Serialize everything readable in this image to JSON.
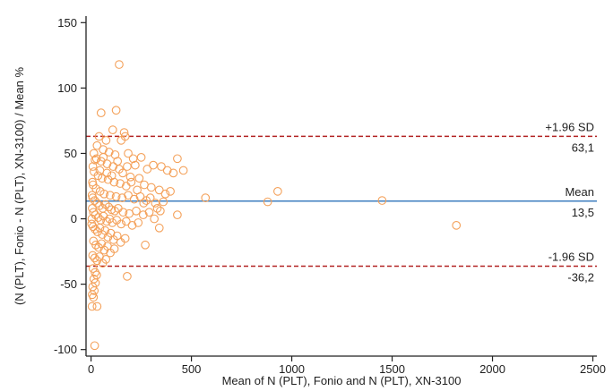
{
  "chart_data": {
    "type": "scatter",
    "xlabel": "Mean of N (PLT), Fonio and N (PLT), XN-3100",
    "ylabel": "(N (PLT), Fonio - N (PLT), XN-3100) / Mean %",
    "xlim": [
      -25,
      2520
    ],
    "ylim": [
      -105,
      155
    ],
    "x_ticks": [
      0,
      500,
      1000,
      1500,
      2000,
      2500
    ],
    "y_ticks": [
      150,
      100,
      50,
      0,
      -50,
      -100
    ],
    "reference_lines": [
      {
        "key": "upper",
        "label": "+1.96 SD",
        "value_label": "63,1",
        "value": 63.1,
        "style": "dashed",
        "color": "#b22222"
      },
      {
        "key": "mean",
        "label": "Mean",
        "value_label": "13,5",
        "value": 13.5,
        "style": "solid",
        "color": "#3f7fbf"
      },
      {
        "key": "lower",
        "label": "-1.96 SD",
        "value_label": "-36,2",
        "value": -36.2,
        "style": "dashed",
        "color": "#b22222"
      }
    ],
    "marker_color": "#f4a15a",
    "axis_color": "#222222",
    "points": [
      [
        140,
        118
      ],
      [
        125,
        83
      ],
      [
        50,
        81
      ],
      [
        108,
        68
      ],
      [
        165,
        66
      ],
      [
        40,
        63
      ],
      [
        75,
        60
      ],
      [
        150,
        60
      ],
      [
        170,
        63
      ],
      [
        30,
        56
      ],
      [
        60,
        53
      ],
      [
        90,
        51
      ],
      [
        120,
        49
      ],
      [
        185,
        50
      ],
      [
        210,
        46
      ],
      [
        250,
        47
      ],
      [
        20,
        45
      ],
      [
        50,
        44
      ],
      [
        80,
        42
      ],
      [
        110,
        40
      ],
      [
        140,
        38
      ],
      [
        180,
        40
      ],
      [
        220,
        41
      ],
      [
        280,
        38
      ],
      [
        310,
        41
      ],
      [
        350,
        40
      ],
      [
        380,
        37
      ],
      [
        410,
        35
      ],
      [
        460,
        37
      ],
      [
        430,
        46
      ],
      [
        15,
        36
      ],
      [
        35,
        33
      ],
      [
        55,
        31
      ],
      [
        85,
        30
      ],
      [
        115,
        28
      ],
      [
        145,
        27
      ],
      [
        175,
        25
      ],
      [
        200,
        28
      ],
      [
        240,
        31
      ],
      [
        265,
        26
      ],
      [
        300,
        24
      ],
      [
        340,
        22
      ],
      [
        370,
        19
      ],
      [
        395,
        21
      ],
      [
        10,
        26
      ],
      [
        25,
        23
      ],
      [
        45,
        21
      ],
      [
        65,
        19
      ],
      [
        95,
        18
      ],
      [
        125,
        17
      ],
      [
        155,
        16
      ],
      [
        185,
        18
      ],
      [
        215,
        15
      ],
      [
        245,
        17
      ],
      [
        275,
        14
      ],
      [
        320,
        12
      ],
      [
        360,
        13
      ],
      [
        8,
        16
      ],
      [
        18,
        14
      ],
      [
        30,
        12
      ],
      [
        42,
        10
      ],
      [
        58,
        8
      ],
      [
        72,
        11
      ],
      [
        88,
        9
      ],
      [
        102,
        7
      ],
      [
        118,
        6
      ],
      [
        135,
        8
      ],
      [
        160,
        5
      ],
      [
        190,
        4
      ],
      [
        225,
        6
      ],
      [
        260,
        3
      ],
      [
        290,
        5
      ],
      [
        330,
        8
      ],
      [
        12,
        5
      ],
      [
        22,
        3
      ],
      [
        36,
        1
      ],
      [
        48,
        -1
      ],
      [
        62,
        2
      ],
      [
        78,
        -2
      ],
      [
        92,
        0
      ],
      [
        106,
        -3
      ],
      [
        128,
        -1
      ],
      [
        150,
        -4
      ],
      [
        175,
        -2
      ],
      [
        205,
        -5
      ],
      [
        235,
        -3
      ],
      [
        10,
        -6
      ],
      [
        20,
        -8
      ],
      [
        32,
        -10
      ],
      [
        44,
        -7
      ],
      [
        56,
        -12
      ],
      [
        70,
        -9
      ],
      [
        84,
        -14
      ],
      [
        98,
        -11
      ],
      [
        112,
        -16
      ],
      [
        130,
        -13
      ],
      [
        148,
        -18
      ],
      [
        170,
        -15
      ],
      [
        12,
        -17
      ],
      [
        24,
        -20
      ],
      [
        38,
        -22
      ],
      [
        52,
        -19
      ],
      [
        66,
        -24
      ],
      [
        82,
        -21
      ],
      [
        96,
        -26
      ],
      [
        116,
        -23
      ],
      [
        8,
        -28
      ],
      [
        18,
        -30
      ],
      [
        30,
        -32
      ],
      [
        42,
        -29
      ],
      [
        58,
        -34
      ],
      [
        74,
        -31
      ],
      [
        10,
        -38
      ],
      [
        20,
        -41
      ],
      [
        28,
        -43
      ],
      [
        14,
        -46
      ],
      [
        22,
        -49
      ],
      [
        8,
        -52
      ],
      [
        16,
        -55
      ],
      [
        6,
        -58
      ],
      [
        12,
        -60
      ],
      [
        5,
        -67
      ],
      [
        30,
        -67
      ],
      [
        18,
        -97
      ],
      [
        180,
        -44
      ],
      [
        270,
        -20
      ],
      [
        340,
        -7
      ],
      [
        430,
        3
      ],
      [
        570,
        16
      ],
      [
        880,
        13
      ],
      [
        930,
        21
      ],
      [
        1450,
        14
      ],
      [
        1820,
        -5
      ],
      [
        4,
        0
      ],
      [
        6,
        8
      ],
      [
        3,
        -4
      ],
      [
        5,
        18
      ],
      [
        7,
        28
      ],
      [
        9,
        40
      ],
      [
        14,
        50
      ],
      [
        27,
        46
      ],
      [
        44,
        37
      ],
      [
        61,
        47
      ],
      [
        79,
        35
      ],
      [
        103,
        33
      ],
      [
        132,
        44
      ],
      [
        158,
        35
      ],
      [
        196,
        32
      ],
      [
        230,
        22
      ],
      [
        262,
        12
      ],
      [
        295,
        16
      ],
      [
        315,
        0
      ],
      [
        345,
        6
      ]
    ]
  }
}
